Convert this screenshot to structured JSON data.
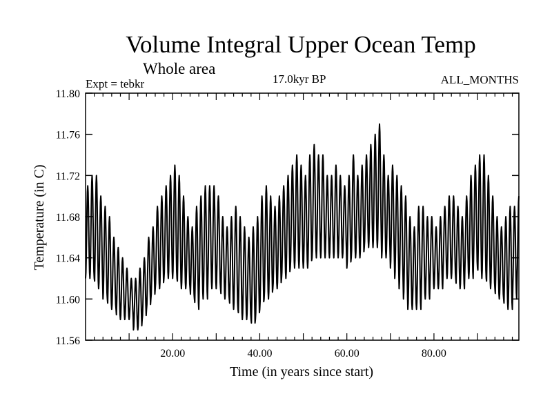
{
  "chart_data": {
    "type": "line",
    "title": "Volume Integral Upper Ocean Temp",
    "subtitle": "Whole area",
    "experiment": "Expt = tebkr",
    "period": "17.0kyr BP",
    "months": "ALL_MONTHS",
    "xlabel": "Time (in years since start)",
    "ylabel": "Temperature (in C)",
    "xlim": [
      0.0,
      99.5
    ],
    "ylim": [
      11.56,
      11.8
    ],
    "xticks": [
      20,
      40,
      60,
      80
    ],
    "xtick_labels": [
      "20.00",
      "40.00",
      "60.00",
      "80.00"
    ],
    "yticks": [
      11.56,
      11.6,
      11.64,
      11.68,
      11.72,
      11.76,
      11.8
    ],
    "ytick_labels": [
      "11.56",
      "11.60",
      "11.64",
      "11.68",
      "11.72",
      "11.76",
      "11.80"
    ],
    "series": [
      {
        "name": "tebkr",
        "cycle_length_years": 1,
        "annual_peaks": [
          11.71,
          11.72,
          11.72,
          11.7,
          11.69,
          11.68,
          11.66,
          11.65,
          11.64,
          11.63,
          11.62,
          11.62,
          11.63,
          11.64,
          11.66,
          11.67,
          11.69,
          11.7,
          11.71,
          11.72,
          11.73,
          11.72,
          11.7,
          11.68,
          11.67,
          11.69,
          11.7,
          11.71,
          11.71,
          11.71,
          11.7,
          11.68,
          11.67,
          11.68,
          11.69,
          11.68,
          11.67,
          11.66,
          11.67,
          11.68,
          11.7,
          11.71,
          11.7,
          11.69,
          11.7,
          11.71,
          11.72,
          11.73,
          11.74,
          11.73,
          11.72,
          11.74,
          11.75,
          11.74,
          11.74,
          11.72,
          11.72,
          11.73,
          11.72,
          11.71,
          11.72,
          11.74,
          11.72,
          11.73,
          11.74,
          11.75,
          11.76,
          11.77,
          11.74,
          11.72,
          11.73,
          11.72,
          11.71,
          11.7,
          11.68,
          11.67,
          11.69,
          11.69,
          11.68,
          11.68,
          11.67,
          11.68,
          11.69,
          11.7,
          11.7,
          11.69,
          11.68,
          11.7,
          11.72,
          11.73,
          11.74,
          11.74,
          11.72,
          11.7,
          11.68,
          11.67,
          11.68,
          11.69,
          11.69,
          11.7
        ],
        "annual_troughs": [
          11.62,
          11.62,
          11.61,
          11.61,
          11.6,
          11.59,
          11.59,
          11.58,
          11.58,
          11.58,
          11.58,
          11.57,
          11.57,
          11.58,
          11.59,
          11.6,
          11.61,
          11.61,
          11.62,
          11.62,
          11.62,
          11.61,
          11.61,
          11.61,
          11.6,
          11.59,
          11.6,
          11.6,
          11.61,
          11.61,
          11.61,
          11.6,
          11.6,
          11.59,
          11.59,
          11.58,
          11.58,
          11.58,
          11.57,
          11.58,
          11.59,
          11.6,
          11.6,
          11.61,
          11.61,
          11.62,
          11.62,
          11.63,
          11.63,
          11.63,
          11.63,
          11.63,
          11.64,
          11.64,
          11.64,
          11.64,
          11.64,
          11.64,
          11.64,
          11.64,
          11.63,
          11.64,
          11.64,
          11.64,
          11.65,
          11.65,
          11.65,
          11.65,
          11.64,
          11.64,
          11.63,
          11.62,
          11.61,
          11.6,
          11.59,
          11.59,
          11.59,
          11.6,
          11.6,
          11.61,
          11.61,
          11.61,
          11.62,
          11.62,
          11.62,
          11.61,
          11.61,
          11.62,
          11.62,
          11.63,
          11.62,
          11.62,
          11.61,
          11.61,
          11.6,
          11.6,
          11.59,
          11.59,
          11.6,
          11.61
        ]
      }
    ]
  }
}
